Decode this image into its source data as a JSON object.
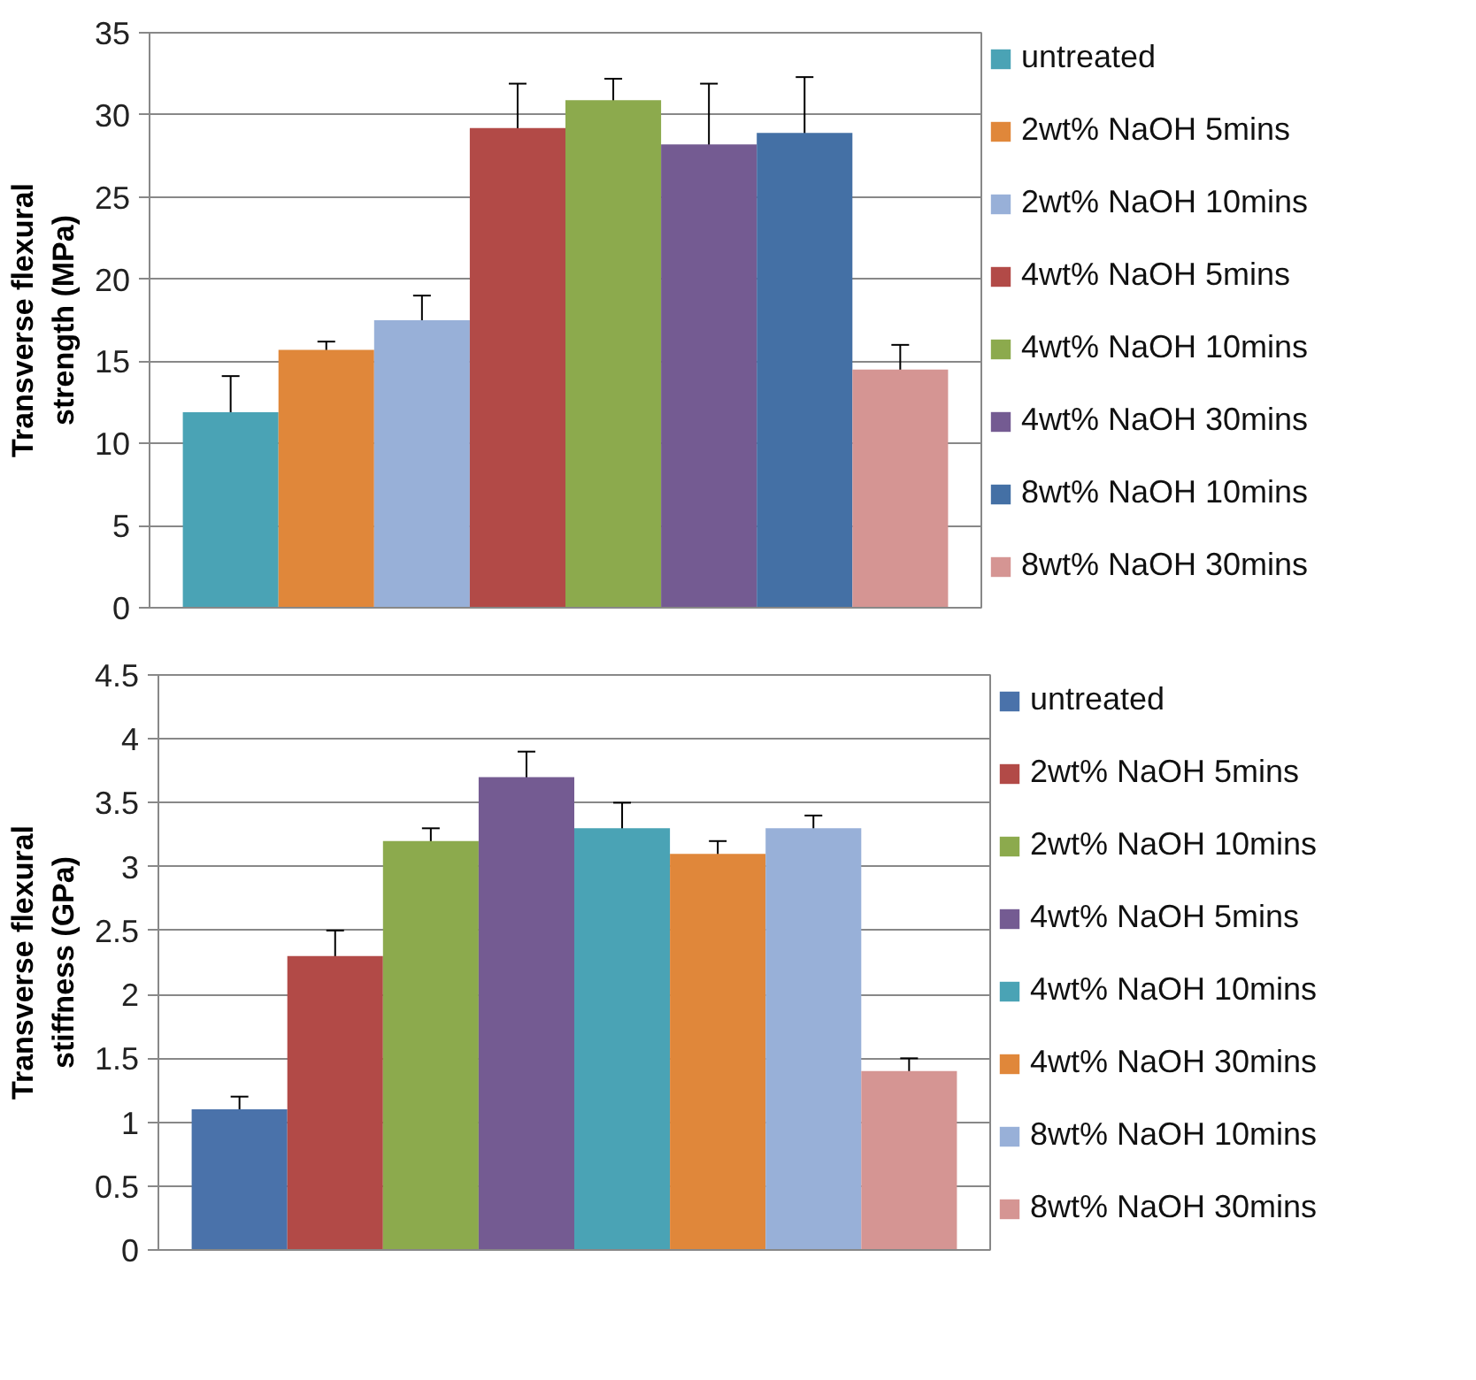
{
  "chart_data": [
    {
      "type": "bar",
      "ylabel": "Transverse flexural strength (MPa)",
      "categories": [
        null
      ],
      "ylim": [
        0,
        35
      ],
      "yticks": [
        0,
        5,
        10,
        15,
        20,
        25,
        30,
        35
      ],
      "grid": "y",
      "legend": "right",
      "series": [
        {
          "name": "untreated",
          "color": "#4aa3b5",
          "values": [
            11.9
          ],
          "errors": [
            2.2
          ]
        },
        {
          "name": "2wt% NaOH 5mins",
          "color": "#e0873a",
          "values": [
            15.7
          ],
          "errors": [
            0.5
          ]
        },
        {
          "name": "2wt% NaOH 10mins",
          "color": "#98b0d8",
          "values": [
            17.5
          ],
          "errors": [
            1.5
          ]
        },
        {
          "name": "4wt% NaOH 5mins",
          "color": "#b24a47",
          "values": [
            29.2
          ],
          "errors": [
            2.7
          ]
        },
        {
          "name": "4wt% NaOH 10mins",
          "color": "#8caa4d",
          "values": [
            30.9
          ],
          "errors": [
            1.3
          ]
        },
        {
          "name": "4wt% NaOH 30mins",
          "color": "#745b92",
          "values": [
            28.2
          ],
          "errors": [
            3.7
          ]
        },
        {
          "name": "8wt% NaOH 10mins",
          "color": "#4470a5",
          "values": [
            28.9
          ],
          "errors": [
            3.4
          ]
        },
        {
          "name": "8wt% NaOH 30mins",
          "color": "#d59593",
          "values": [
            14.5
          ],
          "errors": [
            1.5
          ]
        }
      ]
    },
    {
      "type": "bar",
      "ylabel": "Transverse flexural stiffness (GPa)",
      "categories": [
        null
      ],
      "ylim": [
        0,
        4.5
      ],
      "yticks": [
        0,
        0.5,
        1,
        1.5,
        2,
        2.5,
        3,
        3.5,
        4,
        4.5
      ],
      "grid": "y",
      "legend": "right",
      "series": [
        {
          "name": "untreated",
          "color": "#4a72aa",
          "values": [
            1.1
          ],
          "errors": [
            0.1
          ]
        },
        {
          "name": "2wt% NaOH 5mins",
          "color": "#b24a47",
          "values": [
            2.3
          ],
          "errors": [
            0.2
          ]
        },
        {
          "name": "2wt% NaOH 10mins",
          "color": "#8caa4d",
          "values": [
            3.2
          ],
          "errors": [
            0.1
          ]
        },
        {
          "name": "4wt% NaOH 5mins",
          "color": "#745b92",
          "values": [
            3.7
          ],
          "errors": [
            0.2
          ]
        },
        {
          "name": "4wt% NaOH 10mins",
          "color": "#4aa3b5",
          "values": [
            3.3
          ],
          "errors": [
            0.2
          ]
        },
        {
          "name": "4wt% NaOH 30mins",
          "color": "#e0873a",
          "values": [
            3.1
          ],
          "errors": [
            0.1
          ]
        },
        {
          "name": "8wt% NaOH 10mins",
          "color": "#98b0d8",
          "values": [
            3.3
          ],
          "errors": [
            0.1
          ]
        },
        {
          "name": "8wt% NaOH 30mins",
          "color": "#d59593",
          "values": [
            1.4
          ],
          "errors": [
            0.1
          ]
        }
      ]
    }
  ]
}
